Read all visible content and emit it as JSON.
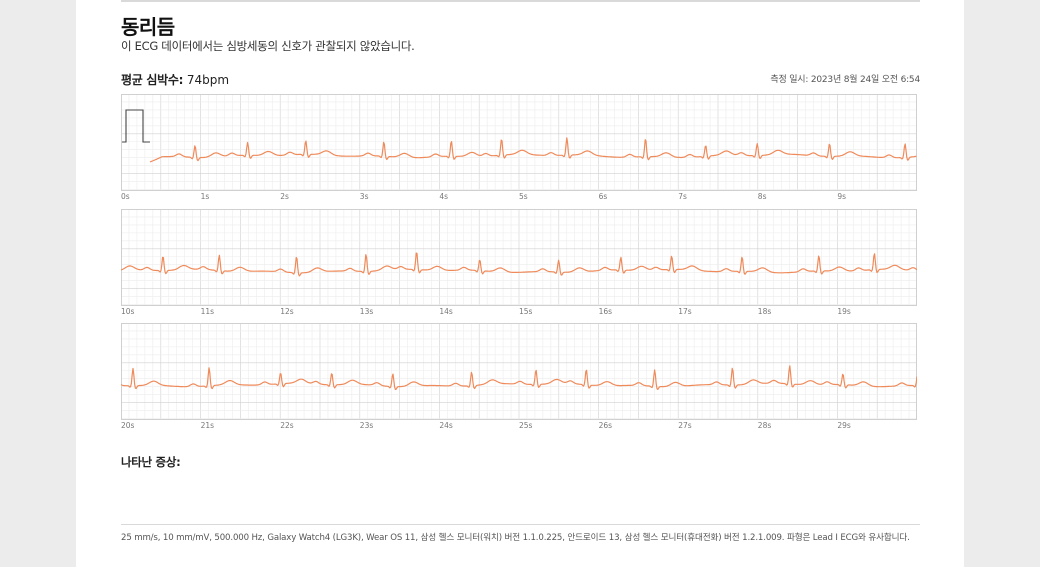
{
  "header": {
    "title": "동리듬",
    "subtitle": "이 ECG 데이터에서는 심방세동의 신호가 관찰되지 않았습니다.",
    "avg_hr_label": "평균 심박수:",
    "avg_hr_value": "74bpm",
    "measured_at": "측정 일시: 2023년 8월 24일 오전 6:54"
  },
  "symptoms_label": "나타난 증상:",
  "footer_text": "25 mm/s, 10 mm/mV, 500.000 Hz, Galaxy Watch4 (LG3K), Wear OS 11, 삼성 헬스 모니터(워치) 버전 1.1.0.225, 안드로이드 13, 삼성 헬스 모니터(휴대전화) 버전 1.2.1.009. 파형은 Lead I ECG와 유사합니다.",
  "colors": {
    "trace": "#ef8a5a",
    "grid_minor": "#ececec",
    "grid_major": "#d0d0d0",
    "calibration": "#444444"
  },
  "chart_data": {
    "type": "line",
    "series": [],
    "heart_rate_bpm": 74,
    "x_unit": "s",
    "strips": [
      {
        "xlim": [
          0,
          10
        ],
        "tick_labels": [
          "0s",
          "1s",
          "2s",
          "3s",
          "4s",
          "5s",
          "6s",
          "7s",
          "8s",
          "9s"
        ],
        "calibration_pulse": true
      },
      {
        "xlim": [
          10,
          20
        ],
        "tick_labels": [
          "10s",
          "11s",
          "12s",
          "13s",
          "14s",
          "15s",
          "16s",
          "17s",
          "18s",
          "19s"
        ],
        "calibration_pulse": false
      },
      {
        "xlim": [
          20,
          30
        ],
        "tick_labels": [
          "20s",
          "21s",
          "22s",
          "23s",
          "24s",
          "25s",
          "26s",
          "27s",
          "28s",
          "29s"
        ],
        "calibration_pulse": false
      }
    ],
    "paper_speed": "25 mm/s",
    "gain": "10 mm/mV",
    "grid": true
  }
}
